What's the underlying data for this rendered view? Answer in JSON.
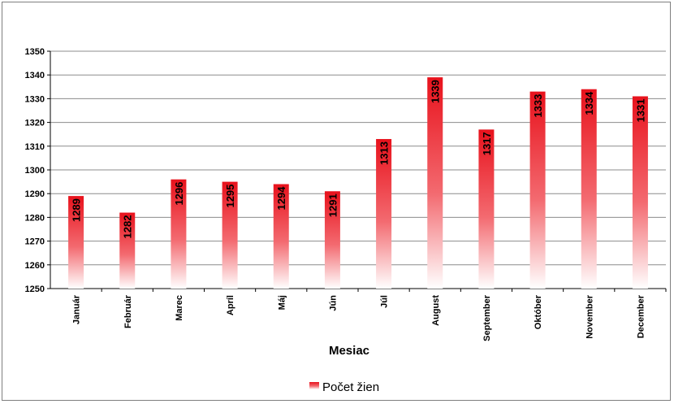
{
  "chart_data": {
    "type": "bar",
    "title": "",
    "xlabel": "Mesiac",
    "ylabel": "",
    "ylim": [
      1250,
      1350
    ],
    "yticks": [
      1250,
      1260,
      1270,
      1280,
      1290,
      1300,
      1310,
      1320,
      1330,
      1340,
      1350
    ],
    "grid": true,
    "legend_position": "bottom",
    "categories": [
      "Január",
      "Február",
      "Marec",
      "Apríl",
      "Máj",
      "Jún",
      "Júl",
      "August",
      "September",
      "Október",
      "November",
      "December"
    ],
    "series": [
      {
        "name": "Počet žien",
        "color": "#e8121c",
        "values": [
          1289,
          1282,
          1296,
          1295,
          1294,
          1291,
          1313,
          1339,
          1317,
          1333,
          1334,
          1331
        ]
      }
    ]
  }
}
